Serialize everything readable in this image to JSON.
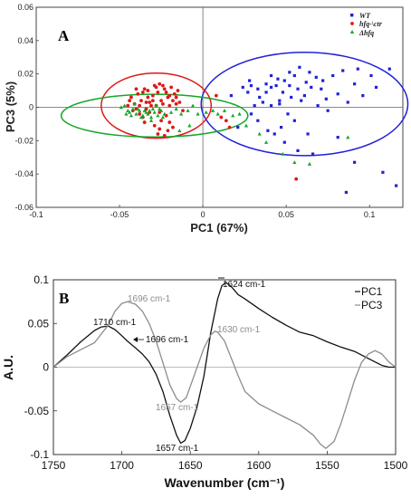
{
  "chart_data": [
    {
      "type": "scatter",
      "panel_label": "A",
      "xlabel": "PC1 (67%)",
      "ylabel": "PC3 (5%)",
      "xlim": [
        -0.1,
        0.12
      ],
      "ylim": [
        -0.06,
        0.06
      ],
      "xticks": [
        -0.1,
        -0.05,
        0,
        0.05,
        0.1
      ],
      "xtick_labels": [
        "-0.1",
        "-0.05",
        "0",
        "0.05",
        "0.1"
      ],
      "yticks": [
        -0.06,
        -0.04,
        -0.02,
        0,
        0.02,
        0.04,
        0.06
      ],
      "ytick_labels": [
        "-0.06",
        "-0.04",
        "-0.02",
        "0",
        "0.02",
        "0.04",
        "0.06"
      ],
      "grid": false,
      "legend_position": "top-right",
      "zero_lines": true,
      "series": [
        {
          "name": "WT",
          "color": "#1f22d6",
          "marker": "square",
          "points": [
            [
              0.031,
              0.001
            ],
            [
              0.036,
              0.003
            ],
            [
              0.041,
              0.001
            ],
            [
              0.046,
              0.004
            ],
            [
              0.053,
              0.006
            ],
            [
              0.048,
              0.009
            ],
            [
              0.041,
              0.012
            ],
            [
              0.055,
              0.019
            ],
            [
              0.058,
              0.024
            ],
            [
              0.052,
              0.021
            ],
            [
              0.045,
              0.017
            ],
            [
              0.038,
              0.014
            ],
            [
              0.033,
              0.011
            ],
            [
              0.029,
              0.013
            ],
            [
              0.027,
              0.009
            ],
            [
              0.044,
              0.013
            ],
            [
              0.062,
              0.015
            ],
            [
              0.065,
              0.012
            ],
            [
              0.061,
              0.007
            ],
            [
              0.059,
              0.004
            ],
            [
              0.068,
              0.018
            ],
            [
              0.071,
              0.011
            ],
            [
              0.074,
              0.005
            ],
            [
              0.069,
              0.001
            ],
            [
              0.075,
              -0.002
            ],
            [
              0.072,
              0.016
            ],
            [
              0.078,
              0.019
            ],
            [
              0.081,
              0.008
            ],
            [
              0.087,
              0.003
            ],
            [
              0.084,
              0.022
            ],
            [
              0.093,
              0.023
            ],
            [
              0.091,
              0.014
            ],
            [
              0.096,
              0.007
            ],
            [
              0.101,
              0.019
            ],
            [
              0.104,
              0.012
            ],
            [
              0.112,
              0.023
            ],
            [
              0.051,
              -0.004
            ],
            [
              0.055,
              -0.008
            ],
            [
              0.047,
              -0.012
            ],
            [
              0.043,
              -0.016
            ],
            [
              0.039,
              -0.014
            ],
            [
              0.063,
              -0.016
            ],
            [
              0.066,
              -0.028
            ],
            [
              0.057,
              -0.026
            ],
            [
              0.049,
              -0.021
            ],
            [
              0.033,
              -0.008
            ],
            [
              0.029,
              -0.004
            ],
            [
              0.021,
              -0.012
            ],
            [
              0.024,
              0.012
            ],
            [
              0.017,
              0.007
            ],
            [
              0.081,
              -0.018
            ],
            [
              0.091,
              -0.033
            ],
            [
              0.108,
              -0.039
            ],
            [
              0.086,
              -0.051
            ],
            [
              0.116,
              -0.047
            ],
            [
              0.041,
              0.019
            ],
            [
              0.049,
              0.016
            ],
            [
              0.057,
              0.011
            ],
            [
              0.064,
              0.021
            ],
            [
              0.034,
              0.006
            ],
            [
              0.038,
              0.009
            ],
            [
              0.046,
              0.002
            ],
            [
              0.052,
              0.013
            ],
            [
              0.028,
              0.016
            ]
          ]
        },
        {
          "name": "hfq-\\ctr",
          "color": "#e01818",
          "marker": "circle",
          "points": [
            [
              -0.043,
              0.006
            ],
            [
              -0.041,
              0.002
            ],
            [
              -0.039,
              0.008
            ],
            [
              -0.037,
              0.004
            ],
            [
              -0.035,
              0.011
            ],
            [
              -0.033,
              0.006
            ],
            [
              -0.031,
              0.001
            ],
            [
              -0.029,
              0.013
            ],
            [
              -0.027,
              0.009
            ],
            [
              -0.025,
              0.004
            ],
            [
              -0.023,
              0.011
            ],
            [
              -0.021,
              0.006
            ],
            [
              -0.019,
              0.012
            ],
            [
              -0.017,
              0.008
            ],
            [
              -0.015,
              0.01
            ],
            [
              -0.045,
              0.001
            ],
            [
              -0.042,
              -0.002
            ],
            [
              -0.038,
              -0.004
            ],
            [
              -0.036,
              -0.006
            ],
            [
              -0.034,
              -0.001
            ],
            [
              -0.032,
              0.003
            ],
            [
              -0.028,
              0.001
            ],
            [
              -0.026,
              -0.003
            ],
            [
              -0.024,
              0.002
            ],
            [
              -0.022,
              -0.005
            ],
            [
              -0.02,
              0.001
            ],
            [
              -0.018,
              0.004
            ],
            [
              -0.016,
              0.002
            ],
            [
              -0.04,
              0.011
            ],
            [
              -0.036,
              0.009
            ],
            [
              -0.03,
              0.007
            ],
            [
              -0.026,
              0.014
            ],
            [
              -0.022,
              0.009
            ],
            [
              -0.029,
              -0.011
            ],
            [
              -0.026,
              -0.013
            ],
            [
              -0.023,
              -0.017
            ],
            [
              -0.021,
              -0.014
            ],
            [
              -0.027,
              -0.016
            ],
            [
              -0.018,
              -0.012
            ],
            [
              -0.035,
              -0.009
            ],
            [
              -0.025,
              -0.008
            ],
            [
              -0.02,
              -0.009
            ],
            [
              0.008,
              0.007
            ],
            [
              0.011,
              -0.006
            ],
            [
              0.014,
              -0.008
            ],
            [
              0.016,
              -0.012
            ],
            [
              0.056,
              -0.043
            ],
            [
              -0.012,
              -0.002
            ],
            [
              -0.033,
              0.01
            ],
            [
              -0.028,
              0.012
            ],
            [
              -0.024,
              0.013
            ],
            [
              -0.03,
              0.004
            ],
            [
              -0.044,
              0.004
            ],
            [
              -0.038,
              0.001
            ],
            [
              -0.034,
              0.003
            ],
            [
              -0.02,
              0.007
            ],
            [
              -0.016,
              0.006
            ],
            [
              -0.014,
              0.003
            ],
            [
              -0.032,
              -0.003
            ],
            [
              -0.04,
              -0.001
            ]
          ]
        },
        {
          "name": "Δhfq",
          "color": "#13a826",
          "marker": "triangle",
          "points": [
            [
              -0.047,
              0.001
            ],
            [
              -0.044,
              -0.003
            ],
            [
              -0.042,
              -0.001
            ],
            [
              -0.04,
              -0.004
            ],
            [
              -0.038,
              -0.002
            ],
            [
              -0.036,
              -0.005
            ],
            [
              -0.034,
              -0.003
            ],
            [
              -0.046,
              -0.004
            ],
            [
              -0.043,
              -0.005
            ],
            [
              -0.039,
              -0.001
            ],
            [
              -0.037,
              -0.006
            ],
            [
              -0.035,
              -0.002
            ],
            [
              -0.033,
              -0.004
            ],
            [
              -0.031,
              -0.006
            ],
            [
              -0.029,
              -0.003
            ],
            [
              -0.027,
              -0.005
            ],
            [
              -0.025,
              -0.002
            ],
            [
              -0.023,
              -0.004
            ],
            [
              -0.03,
              -0.001
            ],
            [
              -0.028,
              0.001
            ],
            [
              -0.041,
              0.002
            ],
            [
              -0.045,
              -0.002
            ],
            [
              -0.032,
              -0.002
            ],
            [
              -0.026,
              -0.001
            ],
            [
              -0.024,
              -0.006
            ],
            [
              -0.019,
              -0.003
            ],
            [
              -0.016,
              -0.001
            ],
            [
              -0.013,
              -0.004
            ],
            [
              -0.009,
              -0.002
            ],
            [
              -0.006,
              0.001
            ],
            [
              -0.003,
              -0.004
            ],
            [
              0.002,
              -0.003
            ],
            [
              0.006,
              -0.002
            ],
            [
              0.009,
              -0.004
            ],
            [
              0.013,
              -0.002
            ],
            [
              0.018,
              -0.005
            ],
            [
              0.022,
              -0.004
            ],
            [
              0.026,
              -0.011
            ],
            [
              0.034,
              -0.016
            ],
            [
              0.038,
              -0.021
            ],
            [
              0.048,
              -0.028
            ],
            [
              0.055,
              -0.033
            ],
            [
              0.064,
              -0.034
            ],
            [
              0.087,
              -0.018
            ],
            [
              -0.014,
              -0.014
            ],
            [
              -0.008,
              -0.011
            ],
            [
              -0.049,
              0.0
            ],
            [
              -0.031,
              -0.008
            ]
          ]
        }
      ],
      "ellipses": [
        {
          "color": "#1f22d6",
          "cx": 0.061,
          "cy": 0.002,
          "rx": 0.062,
          "ry": 0.031
        },
        {
          "color": "#e01818",
          "cx": -0.028,
          "cy": 0.001,
          "rx": 0.033,
          "ry": 0.0195
        },
        {
          "color": "#13a826",
          "cx": -0.029,
          "cy": -0.005,
          "rx": 0.056,
          "ry": 0.0128
        }
      ]
    },
    {
      "type": "line",
      "panel_label": "B",
      "xlabel": "Wavenumber (cm⁻¹)",
      "ylabel": "A.U.",
      "xlim": [
        1750,
        1500
      ],
      "ylim": [
        -0.1,
        0.1
      ],
      "xticks": [
        1750,
        1700,
        1650,
        1600,
        1550,
        1500
      ],
      "xtick_labels": [
        "1750",
        "1700",
        "1650",
        "1600",
        "1550",
        "1500"
      ],
      "yticks": [
        -0.1,
        -0.05,
        0,
        0.05,
        0.1
      ],
      "ytick_labels": [
        "-0.1",
        "-0.05",
        "0",
        "0.05",
        "0.1"
      ],
      "grid": false,
      "legend_position": "top-right",
      "series": [
        {
          "name": "PC1",
          "color": "#111111",
          "x": [
            1750,
            1740,
            1730,
            1720,
            1715,
            1710,
            1705,
            1700,
            1696,
            1690,
            1685,
            1680,
            1675,
            1670,
            1665,
            1660,
            1657,
            1654,
            1650,
            1645,
            1640,
            1635,
            1630,
            1627,
            1624,
            1620,
            1615,
            1610,
            1600,
            1590,
            1580,
            1570,
            1560,
            1550,
            1540,
            1530,
            1520,
            1510,
            1505,
            1500
          ],
          "y": [
            0.0,
            0.014,
            0.029,
            0.042,
            0.046,
            0.047,
            0.043,
            0.036,
            0.03,
            0.022,
            0.015,
            0.006,
            -0.008,
            -0.028,
            -0.055,
            -0.078,
            -0.087,
            -0.084,
            -0.07,
            -0.045,
            -0.01,
            0.04,
            0.078,
            0.093,
            0.097,
            0.092,
            0.083,
            0.078,
            0.067,
            0.057,
            0.048,
            0.04,
            0.036,
            0.029,
            0.023,
            0.018,
            0.01,
            0.002,
            0.0,
            0.0
          ]
        },
        {
          "name": "PC3",
          "color": "#8c8c8c",
          "x": [
            1750,
            1740,
            1730,
            1720,
            1710,
            1705,
            1700,
            1696,
            1690,
            1685,
            1680,
            1675,
            1670,
            1665,
            1660,
            1657,
            1653,
            1650,
            1645,
            1640,
            1635,
            1632,
            1630,
            1625,
            1620,
            1615,
            1610,
            1600,
            1590,
            1580,
            1570,
            1560,
            1555,
            1551,
            1545,
            1540,
            1535,
            1530,
            1525,
            1520,
            1515,
            1510,
            1505,
            1500
          ],
          "y": [
            0.0,
            0.012,
            0.02,
            0.028,
            0.048,
            0.064,
            0.073,
            0.075,
            0.072,
            0.064,
            0.05,
            0.03,
            0.005,
            -0.02,
            -0.036,
            -0.04,
            -0.035,
            -0.022,
            0.0,
            0.022,
            0.037,
            0.041,
            0.04,
            0.03,
            0.01,
            -0.01,
            -0.028,
            -0.042,
            -0.05,
            -0.058,
            -0.066,
            -0.078,
            -0.088,
            -0.093,
            -0.085,
            -0.065,
            -0.04,
            -0.015,
            0.005,
            0.015,
            0.019,
            0.015,
            0.006,
            0.0
          ]
        }
      ],
      "annotations": [
        {
          "text": "1710 cm-1",
          "series": "PC1"
        },
        {
          "text": "1696 cm-1",
          "series": "PC1"
        },
        {
          "text": "1657 cm-1",
          "series": "PC1"
        },
        {
          "text": "1624 cm-1",
          "series": "PC1"
        },
        {
          "text": "1696 cm-1",
          "series": "PC3"
        },
        {
          "text": "1657 cm-1",
          "series": "PC3"
        },
        {
          "text": "1630 cm-1",
          "series": "PC3"
        }
      ]
    }
  ]
}
